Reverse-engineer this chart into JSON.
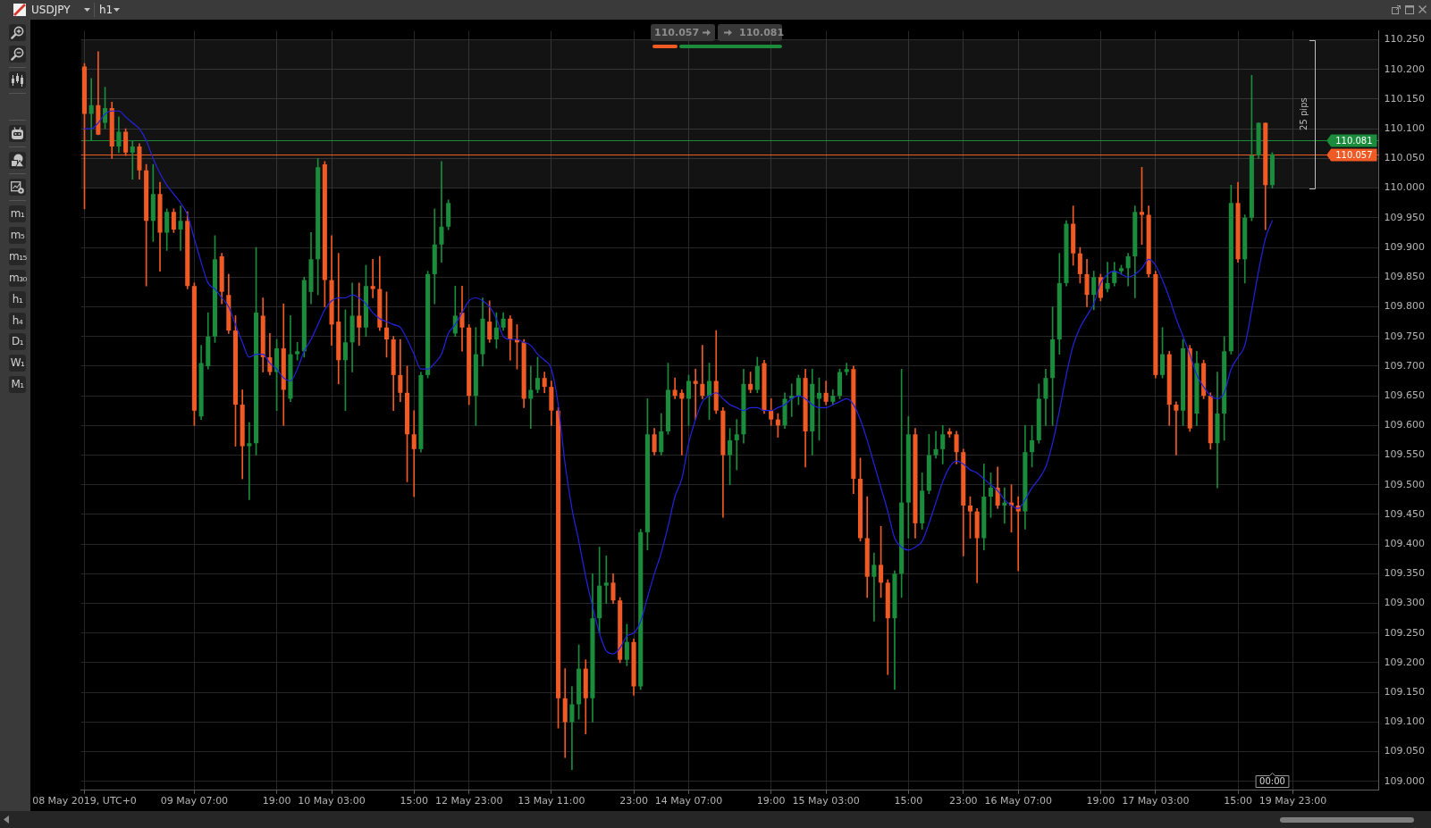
{
  "chart_data": {
    "type": "candlestick",
    "title": "USDJPY",
    "subtitle": "h1",
    "categories": [
      "08 May 2019, UTC+0",
      null,
      null,
      null,
      null,
      null,
      null,
      null,
      null,
      null,
      null,
      null,
      null,
      null,
      null,
      null,
      "09 May 07:00",
      null,
      null,
      null,
      null,
      null,
      null,
      null,
      null,
      null,
      null,
      null,
      "19:00",
      null,
      null,
      null,
      null,
      null,
      null,
      null,
      "10 May 03:00",
      null,
      null,
      null,
      null,
      null,
      null,
      null,
      null,
      null,
      null,
      null,
      "15:00",
      null,
      null,
      null,
      null,
      null,
      null,
      null,
      "12 May 23:00",
      null,
      null,
      null,
      null,
      null,
      null,
      null,
      null,
      null,
      null,
      null,
      "13 May 11:00",
      null,
      null,
      null,
      null,
      null,
      null,
      null,
      null,
      null,
      null,
      null,
      "23:00",
      null,
      null,
      null,
      null,
      null,
      null,
      null,
      "14 May 07:00",
      null,
      null,
      null,
      null,
      null,
      null,
      null,
      null,
      null,
      null,
      null,
      "19:00",
      null,
      null,
      null,
      null,
      null,
      null,
      null,
      "15 May 03:00",
      null,
      null,
      null,
      null,
      null,
      null,
      null,
      null,
      null,
      null,
      null,
      "15:00",
      null,
      null,
      null,
      null,
      null,
      null,
      null,
      "23:00",
      null,
      null,
      null,
      null,
      null,
      null,
      null,
      "16 May 07:00",
      null,
      null,
      null,
      null,
      null,
      null,
      null,
      null,
      null,
      null,
      null,
      "19:00",
      null,
      null,
      null,
      null,
      null,
      null,
      null,
      "17 May 03:00",
      null,
      null,
      null,
      null,
      null,
      null,
      null,
      null,
      null,
      null,
      null,
      "15:00",
      null,
      null,
      null,
      null,
      null,
      null,
      null,
      "19 May 23:00",
      null,
      null,
      null,
      null,
      null,
      null,
      null,
      null,
      null,
      null,
      null,
      null
    ],
    "ohlc": [
      [
        110.205,
        110.21,
        109.965,
        110.125
      ],
      [
        110.125,
        110.185,
        110.08,
        110.14
      ],
      [
        110.14,
        110.23,
        110.09,
        110.09
      ],
      [
        110.11,
        110.17,
        110.1,
        110.135
      ],
      [
        110.135,
        110.145,
        110.05,
        110.07
      ],
      [
        110.07,
        110.12,
        110.06,
        110.095
      ],
      [
        110.095,
        110.1,
        110.055,
        110.06
      ],
      [
        110.06,
        110.08,
        110.015,
        110.07
      ],
      [
        110.07,
        110.075,
        110.015,
        110.03
      ],
      [
        110.03,
        110.04,
        109.835,
        109.945
      ],
      [
        109.945,
        110.04,
        109.91,
        109.99
      ],
      [
        109.99,
        110.01,
        109.86,
        109.925
      ],
      [
        109.925,
        109.965,
        109.895,
        109.96
      ],
      [
        109.96,
        109.965,
        109.925,
        109.93
      ],
      [
        109.93,
        109.97,
        109.895,
        109.945
      ],
      [
        109.945,
        109.96,
        109.83,
        109.835
      ],
      [
        109.835,
        109.84,
        109.6,
        109.625
      ],
      [
        109.615,
        109.735,
        109.61,
        109.705
      ],
      [
        109.7,
        109.79,
        109.695,
        109.75
      ],
      [
        109.75,
        109.92,
        109.74,
        109.88
      ],
      [
        109.885,
        109.89,
        109.805,
        109.825
      ],
      [
        109.82,
        109.855,
        109.755,
        109.76
      ],
      [
        109.76,
        109.785,
        109.565,
        109.635
      ],
      [
        109.635,
        109.66,
        109.51,
        109.565
      ],
      [
        109.565,
        109.605,
        109.475,
        109.57
      ],
      [
        109.57,
        109.9,
        109.55,
        109.79
      ],
      [
        109.785,
        109.815,
        109.69,
        109.715
      ],
      [
        109.715,
        109.755,
        109.685,
        109.69
      ],
      [
        109.69,
        109.745,
        109.625,
        109.73
      ],
      [
        109.73,
        109.805,
        109.6,
        109.66
      ],
      [
        109.645,
        109.785,
        109.64,
        109.72
      ],
      [
        109.72,
        109.74,
        109.71,
        109.725
      ],
      [
        109.725,
        109.85,
        109.715,
        109.845
      ],
      [
        109.825,
        109.925,
        109.805,
        109.88
      ],
      [
        109.88,
        110.05,
        109.82,
        110.035
      ],
      [
        110.04,
        110.045,
        109.8,
        109.845
      ],
      [
        109.845,
        109.92,
        109.735,
        109.77
      ],
      [
        109.775,
        109.89,
        109.67,
        109.71
      ],
      [
        109.71,
        109.795,
        109.625,
        109.74
      ],
      [
        109.74,
        109.84,
        109.69,
        109.785
      ],
      [
        109.785,
        109.84,
        109.735,
        109.765
      ],
      [
        109.765,
        109.87,
        109.75,
        109.835
      ],
      [
        109.835,
        109.88,
        109.815,
        109.83
      ],
      [
        109.83,
        109.885,
        109.76,
        109.765
      ],
      [
        109.765,
        109.825,
        109.715,
        109.745
      ],
      [
        109.745,
        109.75,
        109.625,
        109.685
      ],
      [
        109.685,
        109.745,
        109.64,
        109.655
      ],
      [
        109.655,
        109.7,
        109.505,
        109.585
      ],
      [
        109.585,
        109.625,
        109.48,
        109.56
      ],
      [
        109.56,
        109.69,
        109.555,
        109.685
      ],
      [
        109.685,
        109.86,
        109.68,
        109.855
      ],
      [
        109.855,
        109.965,
        109.805,
        109.905
      ],
      [
        109.905,
        110.045,
        109.875,
        109.935
      ],
      [
        109.935,
        109.98,
        109.93,
        109.975
      ],
      [
        109.755,
        109.835,
        109.75,
        109.785
      ],
      [
        109.79,
        109.835,
        109.725,
        109.765
      ],
      [
        109.765,
        109.77,
        109.635,
        109.65
      ],
      [
        109.65,
        109.765,
        109.6,
        109.72
      ],
      [
        109.72,
        109.815,
        109.7,
        109.78
      ],
      [
        109.775,
        109.81,
        109.74,
        109.745
      ],
      [
        109.745,
        109.79,
        109.73,
        109.765
      ],
      [
        109.765,
        109.79,
        109.76,
        109.78
      ],
      [
        109.78,
        109.785,
        109.71,
        109.745
      ],
      [
        109.745,
        109.77,
        109.695,
        109.74
      ],
      [
        109.74,
        109.745,
        109.63,
        109.645
      ],
      [
        109.645,
        109.7,
        109.595,
        109.66
      ],
      [
        109.66,
        109.715,
        109.655,
        109.68
      ],
      [
        109.68,
        109.69,
        109.655,
        109.665
      ],
      [
        109.665,
        109.675,
        109.6,
        109.625
      ],
      [
        109.625,
        109.63,
        109.09,
        109.14
      ],
      [
        109.14,
        109.19,
        109.04,
        109.1
      ],
      [
        109.1,
        109.16,
        109.02,
        109.13
      ],
      [
        109.13,
        109.23,
        109.105,
        109.19
      ],
      [
        109.19,
        109.205,
        109.08,
        109.14
      ],
      [
        109.14,
        109.35,
        109.1,
        109.275
      ],
      [
        109.275,
        109.395,
        109.25,
        109.33
      ],
      [
        109.33,
        109.38,
        109.3,
        109.335
      ],
      [
        109.335,
        109.35,
        109.3,
        109.305
      ],
      [
        109.305,
        109.31,
        109.2,
        109.205
      ],
      [
        109.205,
        109.265,
        109.195,
        109.235
      ],
      [
        109.235,
        109.24,
        109.145,
        109.16
      ],
      [
        109.16,
        109.425,
        109.155,
        109.42
      ],
      [
        109.42,
        109.645,
        109.39,
        109.585
      ],
      [
        109.585,
        109.595,
        109.55,
        109.555
      ],
      [
        109.555,
        109.62,
        109.55,
        109.59
      ],
      [
        109.59,
        109.705,
        109.585,
        109.66
      ],
      [
        109.66,
        109.68,
        109.645,
        109.65
      ],
      [
        109.655,
        109.66,
        109.55,
        109.645
      ],
      [
        109.645,
        109.685,
        109.6,
        109.675
      ],
      [
        109.675,
        109.695,
        109.61,
        109.67
      ],
      [
        109.67,
        109.735,
        109.645,
        109.65
      ],
      [
        109.65,
        109.705,
        109.61,
        109.675
      ],
      [
        109.675,
        109.76,
        109.62,
        109.625
      ],
      [
        109.625,
        109.63,
        109.445,
        109.55
      ],
      [
        109.55,
        109.595,
        109.5,
        109.575
      ],
      [
        109.575,
        109.61,
        109.525,
        109.585
      ],
      [
        109.585,
        109.695,
        109.57,
        109.67
      ],
      [
        109.67,
        109.69,
        109.655,
        109.66
      ],
      [
        109.66,
        109.715,
        109.655,
        109.7
      ],
      [
        109.705,
        109.71,
        109.62,
        109.625
      ],
      [
        109.625,
        109.645,
        109.6,
        109.61
      ],
      [
        109.61,
        109.62,
        109.58,
        109.6
      ],
      [
        109.6,
        109.655,
        109.595,
        109.645
      ],
      [
        109.645,
        109.67,
        109.615,
        109.65
      ],
      [
        109.65,
        109.685,
        109.635,
        109.68
      ],
      [
        109.68,
        109.695,
        109.53,
        109.59
      ],
      [
        109.59,
        109.695,
        109.55,
        109.67
      ],
      [
        109.645,
        109.68,
        109.575,
        109.655
      ],
      [
        109.655,
        109.675,
        109.635,
        109.64
      ],
      [
        109.64,
        109.66,
        109.635,
        109.65
      ],
      [
        109.65,
        109.695,
        109.645,
        109.69
      ],
      [
        109.69,
        109.705,
        109.685,
        109.695
      ],
      [
        109.695,
        109.7,
        109.485,
        109.51
      ],
      [
        109.51,
        109.545,
        109.405,
        109.41
      ],
      [
        109.41,
        109.48,
        109.31,
        109.345
      ],
      [
        109.345,
        109.385,
        109.27,
        109.365
      ],
      [
        109.365,
        109.43,
        109.31,
        109.335
      ],
      [
        109.335,
        109.34,
        109.18,
        109.275
      ],
      [
        109.275,
        109.355,
        109.155,
        109.35
      ],
      [
        109.35,
        109.695,
        109.31,
        109.47
      ],
      [
        109.47,
        109.615,
        109.41,
        109.585
      ],
      [
        109.585,
        109.595,
        109.41,
        109.435
      ],
      [
        109.435,
        109.52,
        109.425,
        109.49
      ],
      [
        109.49,
        109.585,
        109.485,
        109.55
      ],
      [
        109.55,
        109.59,
        109.545,
        109.56
      ],
      [
        109.56,
        109.6,
        109.535,
        109.585
      ],
      [
        109.59,
        109.595,
        109.58,
        109.585
      ],
      [
        109.585,
        109.59,
        109.535,
        109.555
      ],
      [
        109.555,
        109.56,
        109.38,
        109.465
      ],
      [
        109.465,
        109.48,
        109.41,
        109.455
      ],
      [
        109.455,
        109.46,
        109.335,
        109.41
      ],
      [
        109.41,
        109.535,
        109.39,
        109.48
      ],
      [
        109.48,
        109.52,
        109.445,
        109.495
      ],
      [
        109.495,
        109.53,
        109.46,
        109.465
      ],
      [
        109.465,
        109.495,
        109.435,
        109.47
      ],
      [
        109.47,
        109.5,
        109.42,
        109.465
      ],
      [
        109.465,
        109.48,
        109.355,
        109.455
      ],
      [
        109.455,
        109.6,
        109.425,
        109.555
      ],
      [
        109.555,
        109.6,
        109.53,
        109.575
      ],
      [
        109.575,
        109.67,
        109.57,
        109.645
      ],
      [
        109.645,
        109.695,
        109.6,
        109.68
      ],
      [
        109.68,
        109.8,
        109.6,
        109.745
      ],
      [
        109.745,
        109.89,
        109.72,
        109.84
      ],
      [
        109.84,
        109.945,
        109.835,
        109.94
      ],
      [
        109.94,
        109.97,
        109.87,
        109.89
      ],
      [
        109.89,
        109.9,
        109.84,
        109.855
      ],
      [
        109.855,
        109.88,
        109.8,
        109.82
      ],
      [
        109.82,
        109.86,
        109.795,
        109.85
      ],
      [
        109.85,
        109.855,
        109.81,
        109.815
      ],
      [
        109.83,
        109.875,
        109.825,
        109.84
      ],
      [
        109.84,
        109.875,
        109.835,
        109.86
      ],
      [
        109.86,
        109.87,
        109.855,
        109.865
      ],
      [
        109.865,
        109.89,
        109.835,
        109.885
      ],
      [
        109.885,
        109.97,
        109.815,
        109.96
      ],
      [
        109.96,
        110.035,
        109.905,
        109.955
      ],
      [
        109.955,
        109.97,
        109.85,
        109.855
      ],
      [
        109.855,
        109.86,
        109.68,
        109.685
      ],
      [
        109.685,
        109.765,
        109.68,
        109.72
      ],
      [
        109.72,
        109.725,
        109.6,
        109.635
      ],
      [
        109.635,
        109.64,
        109.55,
        109.625
      ],
      [
        109.625,
        109.745,
        109.6,
        109.73
      ],
      [
        109.73,
        109.735,
        109.59,
        109.595
      ],
      [
        109.62,
        109.725,
        109.6,
        109.705
      ],
      [
        109.705,
        109.71,
        109.645,
        109.65
      ],
      [
        109.65,
        109.655,
        109.56,
        109.57
      ],
      [
        109.57,
        109.69,
        109.495,
        109.62
      ],
      [
        109.62,
        109.75,
        109.575,
        109.725
      ],
      [
        109.725,
        110.005,
        109.72,
        109.975
      ],
      [
        109.975,
        110.01,
        109.875,
        109.88
      ],
      [
        109.88,
        109.955,
        109.84,
        109.95
      ],
      [
        109.95,
        110.19,
        109.945,
        110.055
      ],
      [
        110.055,
        110.11,
        110.05,
        110.11
      ],
      [
        110.11,
        110.11,
        109.93,
        110.005
      ],
      [
        110.005,
        110.06,
        110.0,
        110.057
      ],
      null,
      null,
      null,
      null,
      null,
      null,
      null,
      null,
      null,
      null,
      null,
      null,
      null,
      null,
      null
    ],
    "colors": [
      "#f05a24",
      "#1a8c3c",
      "#f05a24",
      "#1a8c3c",
      "#f05a24",
      "#1a8c3c",
      "#f05a24",
      "#1a8c3c",
      "#f05a24",
      "#f05a24",
      "#1a8c3c",
      "#f05a24",
      "#1a8c3c",
      "#f05a24",
      "#1a8c3c",
      "#f05a24",
      "#f05a24",
      "#1a8c3c",
      "#1a8c3c",
      "#1a8c3c",
      "#f05a24",
      "#f05a24",
      "#f05a24",
      "#f05a24",
      "#1a8c3c",
      "#1a8c3c",
      "#f05a24",
      "#f05a24",
      "#1a8c3c",
      "#f05a24",
      "#1a8c3c",
      "#1a8c3c",
      "#1a8c3c",
      "#1a8c3c",
      "#1a8c3c",
      "#f05a24",
      "#f05a24",
      "#f05a24",
      "#1a8c3c",
      "#1a8c3c",
      "#f05a24",
      "#1a8c3c",
      "#f05a24",
      "#f05a24",
      "#f05a24",
      "#f05a24",
      "#f05a24",
      "#f05a24",
      "#f05a24",
      "#1a8c3c",
      "#1a8c3c",
      "#1a8c3c",
      "#1a8c3c",
      "#1a8c3c",
      "#1a8c3c",
      "#f05a24",
      "#f05a24",
      "#1a8c3c",
      "#1a8c3c",
      "#f05a24",
      "#1a8c3c",
      "#1a8c3c",
      "#f05a24",
      "#f05a24",
      "#f05a24",
      "#1a8c3c",
      "#1a8c3c",
      "#f05a24",
      "#f05a24",
      "#f05a24",
      "#f05a24",
      "#1a8c3c",
      "#1a8c3c",
      "#f05a24",
      "#1a8c3c",
      "#1a8c3c",
      "#1a8c3c",
      "#f05a24",
      "#f05a24",
      "#1a8c3c",
      "#f05a24",
      "#1a8c3c",
      "#1a8c3c",
      "#f05a24",
      "#1a8c3c",
      "#1a8c3c",
      "#f05a24",
      "#f05a24",
      "#1a8c3c",
      "#f05a24",
      "#f05a24",
      "#1a8c3c",
      "#f05a24",
      "#f05a24",
      "#1a8c3c",
      "#1a8c3c",
      "#1a8c3c",
      "#f05a24",
      "#1a8c3c",
      "#f05a24",
      "#f05a24",
      "#f05a24",
      "#1a8c3c",
      "#1a8c3c",
      "#1a8c3c",
      "#f05a24",
      "#1a8c3c",
      "#1a8c3c",
      "#f05a24",
      "#1a8c3c",
      "#1a8c3c",
      "#1a8c3c",
      "#f05a24",
      "#f05a24",
      "#f05a24",
      "#1a8c3c",
      "#f05a24",
      "#f05a24",
      "#1a8c3c",
      "#1a8c3c",
      "#1a8c3c",
      "#f05a24",
      "#1a8c3c",
      "#1a8c3c",
      "#1a8c3c",
      "#1a8c3c",
      "#f05a24",
      "#f05a24",
      "#f05a24",
      "#f05a24",
      "#f05a24",
      "#1a8c3c",
      "#1a8c3c",
      "#f05a24",
      "#1a8c3c",
      "#f05a24",
      "#f05a24",
      "#1a8c3c",
      "#1a8c3c",
      "#1a8c3c",
      "#1a8c3c",
      "#1a8c3c",
      "#1a8c3c",
      "#1a8c3c",
      "#f05a24",
      "#f05a24",
      "#f05a24",
      "#1a8c3c",
      "#f05a24",
      "#1a8c3c",
      "#1a8c3c",
      "#1a8c3c",
      "#1a8c3c",
      "#1a8c3c",
      "#f05a24",
      "#f05a24",
      "#f05a24",
      "#1a8c3c",
      "#f05a24",
      "#f05a24",
      "#1a8c3c",
      "#f05a24",
      "#1a8c3c",
      "#f05a24",
      "#f05a24",
      "#1a8c3c",
      "#1a8c3c",
      "#1a8c3c",
      "#f05a24",
      "#1a8c3c",
      "#1a8c3c",
      "#1a8c3c",
      "#f05a24",
      "#1a8c3c",
      null,
      null,
      null,
      null,
      null,
      null,
      null,
      null,
      null,
      null,
      null,
      null,
      null,
      null,
      null
    ],
    "series": [
      {
        "type": "line",
        "color": "#2323e0",
        "values": [
          110.1,
          110.1,
          110.11,
          110.125,
          110.13,
          110.13,
          110.12,
          110.11,
          110.1,
          110.08,
          110.05,
          110.025,
          110.005,
          109.99,
          109.975,
          109.955,
          109.915,
          109.875,
          109.84,
          109.83,
          109.815,
          109.8,
          109.77,
          109.74,
          109.715,
          109.72,
          109.72,
          109.705,
          109.695,
          109.68,
          109.675,
          109.695,
          109.725,
          109.745,
          109.77,
          109.795,
          109.81,
          109.815,
          109.815,
          109.82,
          109.815,
          109.805,
          109.79,
          109.78,
          109.775,
          109.77,
          109.765,
          109.745,
          109.72,
          109.695,
          109.695,
          109.705,
          109.72,
          109.755,
          109.77,
          109.79,
          109.81,
          109.815,
          109.81,
          109.8,
          109.78,
          109.75,
          109.745,
          109.745,
          109.74,
          109.735,
          109.72,
          109.71,
          109.695,
          109.635,
          109.535,
          109.46,
          109.405,
          109.345,
          109.295,
          109.25,
          109.22,
          109.215,
          109.225,
          109.245,
          109.25,
          109.27,
          109.31,
          109.35,
          109.385,
          109.43,
          109.48,
          109.51,
          109.57,
          109.61,
          109.64,
          109.65,
          109.655,
          109.645,
          109.635,
          109.63,
          109.625,
          109.63,
          109.63,
          109.625,
          109.625,
          109.63,
          109.635,
          109.645,
          109.65,
          109.645,
          109.635,
          109.63,
          109.63,
          109.635,
          109.64,
          109.645,
          109.635,
          109.61,
          109.575,
          109.535,
          109.495,
          109.455,
          109.41,
          109.395,
          109.39,
          109.395,
          109.405,
          109.435,
          109.47,
          109.505,
          109.53,
          109.54,
          109.535,
          109.525,
          109.52,
          109.51,
          109.5,
          109.49,
          109.475,
          109.465,
          109.46,
          109.475,
          109.495,
          109.51,
          109.53,
          109.57,
          109.625,
          109.685,
          109.735,
          109.765,
          109.785,
          109.805,
          109.84,
          109.855,
          109.86,
          109.855,
          109.85,
          109.855,
          109.865,
          109.88,
          109.87,
          109.845,
          109.815,
          109.78,
          109.75,
          109.72,
          109.685,
          109.665,
          109.65,
          109.645,
          109.655,
          109.695,
          109.715,
          109.735,
          109.795,
          109.86,
          109.915,
          109.945,
          null,
          null,
          null,
          null,
          null,
          null,
          null,
          null,
          null,
          null,
          null,
          null,
          null,
          null,
          null
        ]
      }
    ],
    "ylim": [
      108.985,
      110.265
    ],
    "yticks": [
      {
        "value": 109.0,
        "label": "109.000"
      },
      {
        "value": 109.05,
        "label": "109.050"
      },
      {
        "value": 109.1,
        "label": "109.100"
      },
      {
        "value": 109.15,
        "label": "109.150"
      },
      {
        "value": 109.2,
        "label": "109.200"
      },
      {
        "value": 109.25,
        "label": "109.250"
      },
      {
        "value": 109.3,
        "label": "109.300"
      },
      {
        "value": 109.35,
        "label": "109.350"
      },
      {
        "value": 109.4,
        "label": "109.400"
      },
      {
        "value": 109.45,
        "label": "109.450"
      },
      {
        "value": 109.5,
        "label": "109.500"
      },
      {
        "value": 109.55,
        "label": "109.550"
      },
      {
        "value": 109.6,
        "label": "109.600"
      },
      {
        "value": 109.65,
        "label": "109.650"
      },
      {
        "value": 109.7,
        "label": "109.700"
      },
      {
        "value": 109.75,
        "label": "109.750"
      },
      {
        "value": 109.8,
        "label": "109.800"
      },
      {
        "value": 109.85,
        "label": "109.850"
      },
      {
        "value": 109.9,
        "label": "109.900"
      },
      {
        "value": 109.95,
        "label": "109.950"
      },
      {
        "value": 110.0,
        "label": "110.000"
      },
      {
        "value": 110.05,
        "label": "110.050"
      },
      {
        "value": 110.1,
        "label": "110.100"
      },
      {
        "value": 110.15,
        "label": "110.150"
      },
      {
        "value": 110.2,
        "label": "110.200"
      },
      {
        "value": 110.25,
        "label": "110.250"
      }
    ],
    "grid": true,
    "ref_lines": [
      {
        "axis": "y",
        "value": 110.057,
        "label": "110.057",
        "color": "#f05a24"
      },
      {
        "axis": "y",
        "value": 110.081,
        "label": "110.081",
        "color": "#1a8c3c"
      }
    ],
    "bands": [
      {
        "axis": "y",
        "from": 110.0,
        "to": 110.25,
        "label": "25 pips",
        "color": "#bdbdbd"
      }
    ],
    "annotations": [
      "m₁",
      "m₅",
      "m₁₅",
      "m₃₀",
      "h₁",
      "h₄",
      "D₁",
      "W₁",
      "M₁",
      "00:00"
    ]
  }
}
